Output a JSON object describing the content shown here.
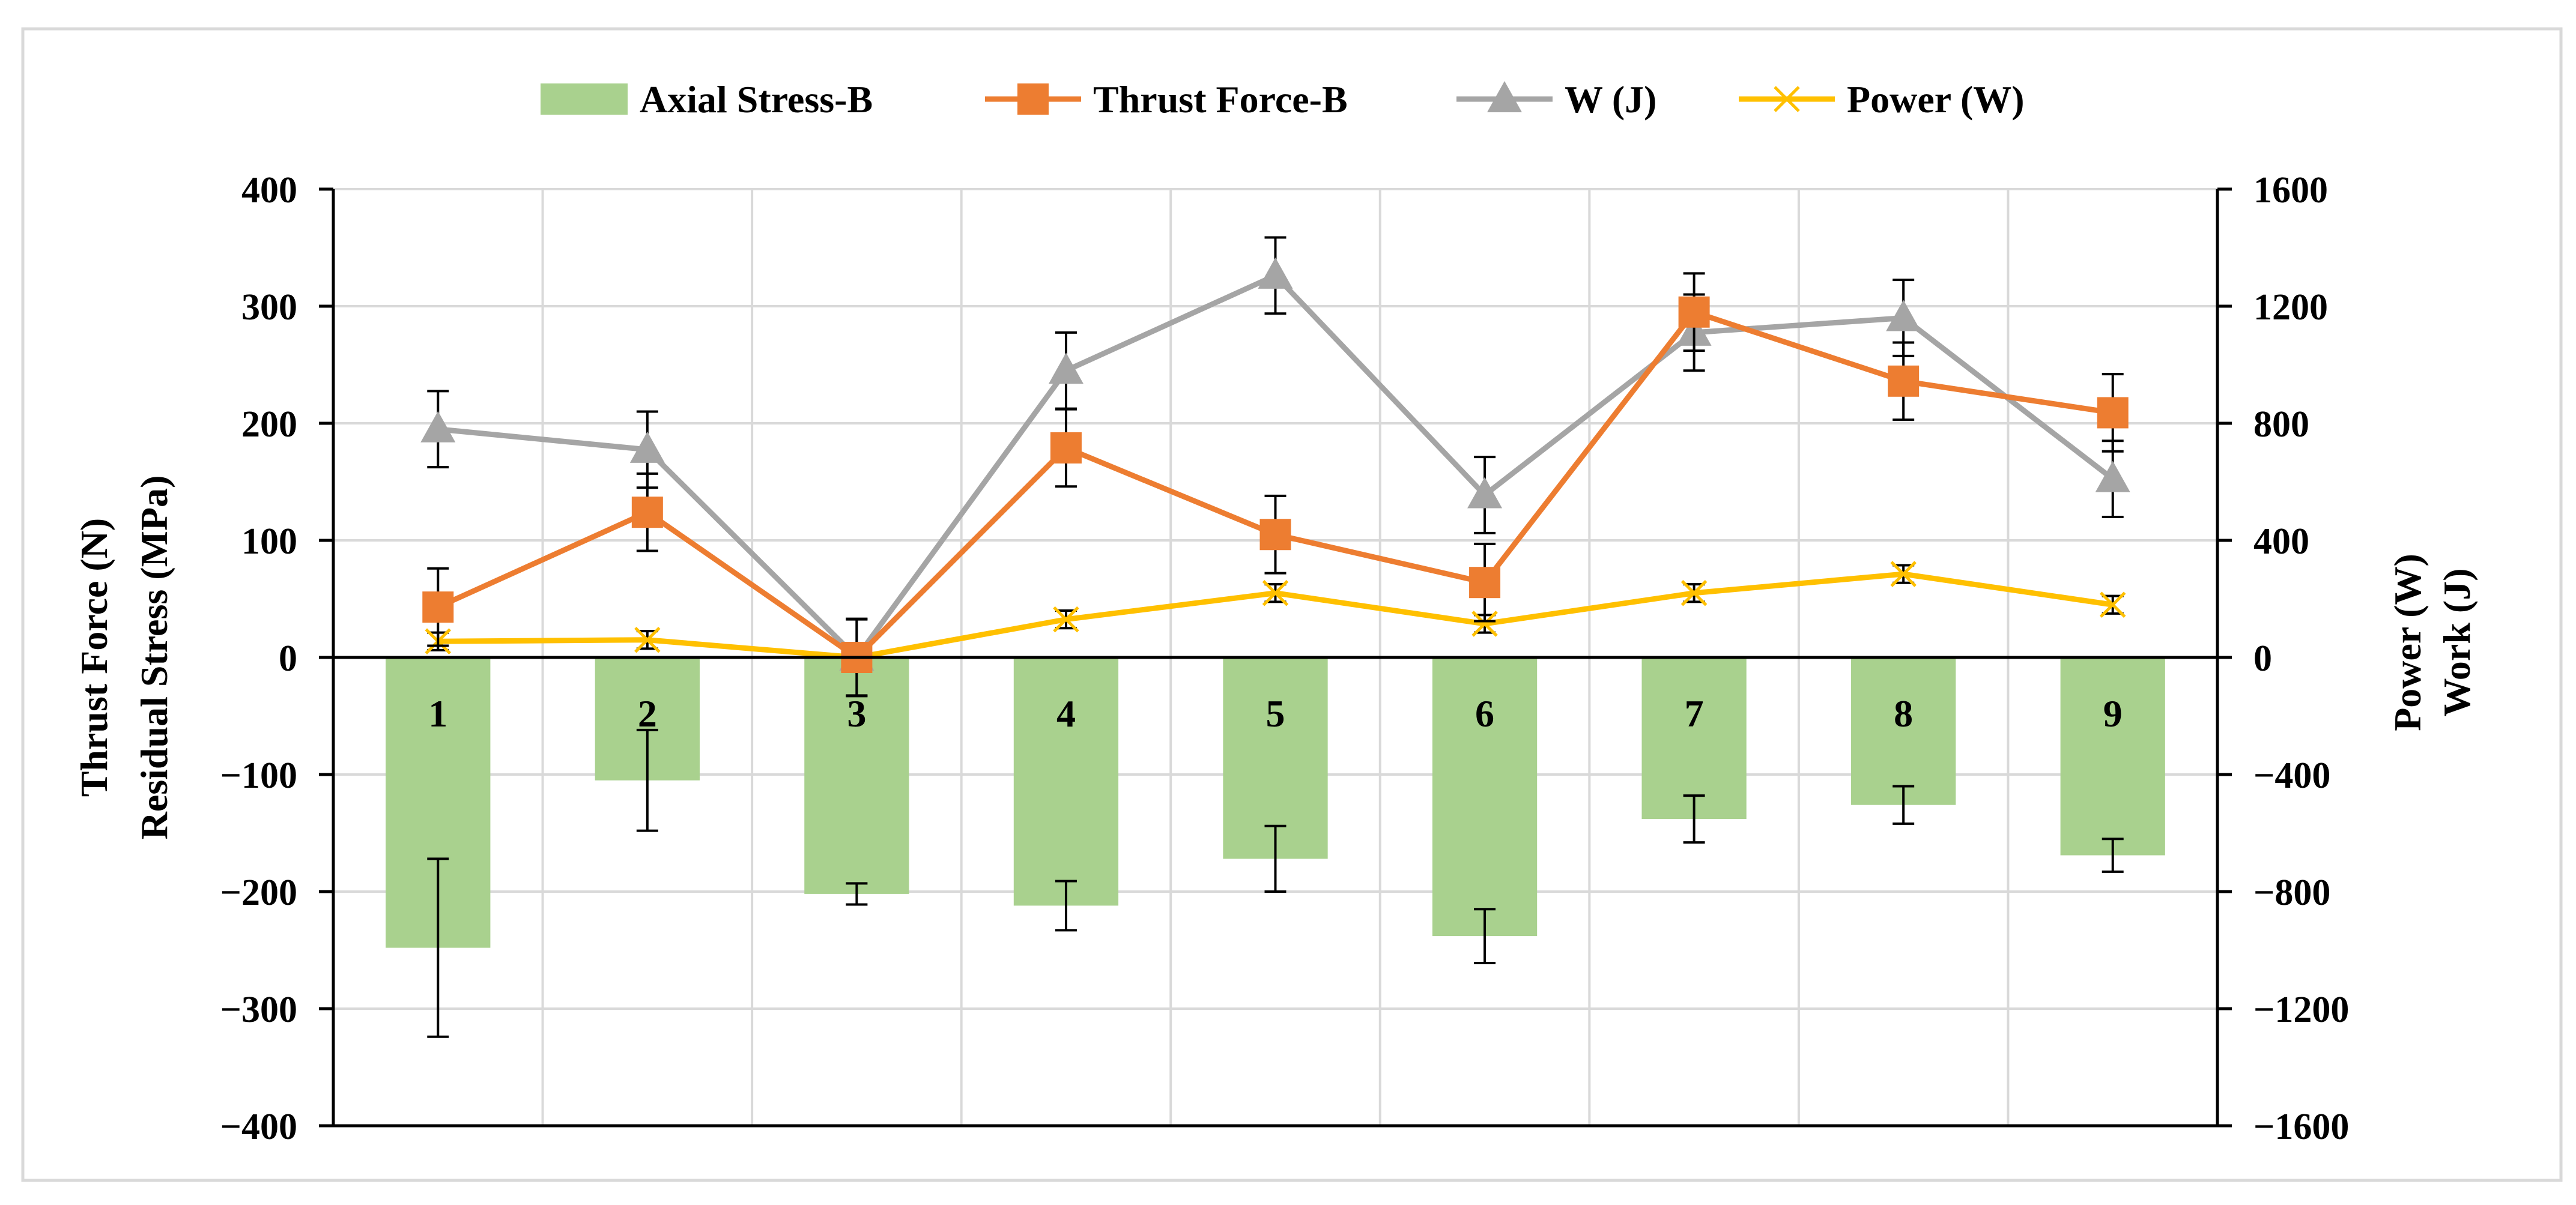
{
  "chart_data": {
    "type": "bar",
    "categories": [
      "1",
      "2",
      "3",
      "4",
      "5",
      "6",
      "7",
      "8",
      "9"
    ],
    "y_left": {
      "label_lines": [
        "Thrust  Force (N)",
        "Residual Stress (MPa)"
      ],
      "range": [
        -400,
        400
      ],
      "ticks": [
        400,
        300,
        200,
        100,
        0,
        -100,
        -200,
        -300,
        -400
      ],
      "tick_labels": [
        "400",
        "300",
        "200",
        "100",
        "0",
        "−100",
        "−200",
        "−300",
        "−400"
      ]
    },
    "y_right": {
      "label_lines": [
        "Power (W)",
        "Work (J)"
      ],
      "range": [
        -1600,
        1600
      ],
      "ticks": [
        1600,
        1200,
        800,
        400,
        0,
        -400,
        -800,
        -1200,
        -1600
      ],
      "tick_labels": [
        "1600",
        "1200",
        "800",
        "400",
        "0",
        "−400",
        "−800",
        "−1200",
        "−1600"
      ]
    },
    "grid": true,
    "legend_position": "top",
    "series": [
      {
        "name": "Axial Stress-B",
        "type": "bar",
        "axis": "left",
        "color": "#a9d18e",
        "values": [
          -248,
          -105,
          -202,
          -212,
          -172,
          -238,
          -138,
          -126,
          -169
        ],
        "error": [
          76,
          43,
          9,
          21,
          28,
          23,
          20,
          16,
          14
        ]
      },
      {
        "name": "Thrust Force-B",
        "type": "line",
        "axis": "left",
        "marker": "square",
        "color": "#ed7d31",
        "values": [
          43,
          124,
          0,
          179,
          105,
          64,
          295,
          236,
          209
        ],
        "error": [
          33,
          33,
          33,
          33,
          33,
          33,
          33,
          33,
          33
        ]
      },
      {
        "name": "W (J)",
        "type": "line",
        "axis": "right",
        "marker": "triangle",
        "color": "#a5a5a5",
        "values": [
          780,
          710,
          0,
          980,
          1305,
          555,
          1110,
          1160,
          610
        ],
        "error": [
          130,
          130,
          130,
          130,
          130,
          130,
          130,
          130,
          130
        ]
      },
      {
        "name": "Power (W)",
        "type": "line",
        "axis": "right",
        "marker": "x",
        "color": "#ffc000",
        "values": [
          55,
          60,
          0,
          130,
          220,
          115,
          220,
          285,
          180
        ],
        "error": [
          30,
          30,
          30,
          30,
          30,
          30,
          30,
          30,
          30
        ]
      }
    ]
  }
}
